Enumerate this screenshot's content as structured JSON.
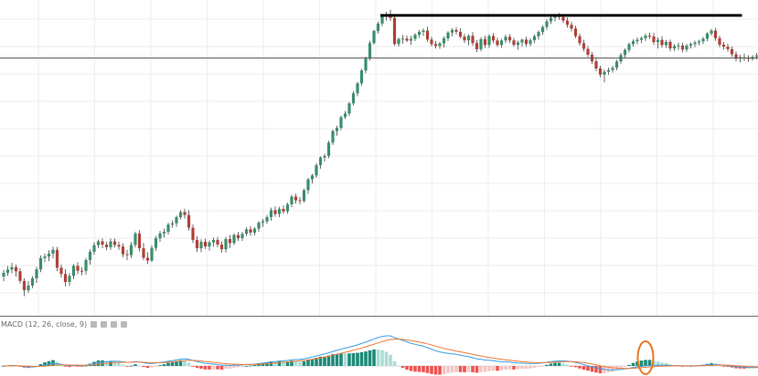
{
  "chart_data": [
    {
      "type": "candlestick",
      "title": "",
      "grid": true,
      "colors": {
        "up": "#3b8f6c",
        "down": "#b0413a",
        "wick": "#6b6b6b"
      },
      "annotations": {
        "resistance_line": {
          "value": 100.4,
          "color": "#000000",
          "start_bar": 92,
          "end_bar": 179
        },
        "horizontal_line": {
          "value": 96.4,
          "color": "#555555"
        }
      },
      "ohlc": [
        [
          75.91,
          76.54,
          75.47,
          76.26
        ],
        [
          76.26,
          76.9,
          75.96,
          76.56
        ],
        [
          76.56,
          77.18,
          76.2,
          76.8
        ],
        [
          76.8,
          77.03,
          75.9,
          76.4
        ],
        [
          76.4,
          76.7,
          75.26,
          75.5
        ],
        [
          75.5,
          75.75,
          74.07,
          74.63
        ],
        [
          74.63,
          75.48,
          74.36,
          75.07
        ],
        [
          75.07,
          75.94,
          74.82,
          75.74
        ],
        [
          75.74,
          76.82,
          75.31,
          76.58
        ],
        [
          76.58,
          77.89,
          76.32,
          77.65
        ],
        [
          77.65,
          78.04,
          77.26,
          77.79
        ],
        [
          77.79,
          78.37,
          77.36,
          78.06
        ],
        [
          78.06,
          78.71,
          77.62,
          78.42
        ],
        [
          78.42,
          78.68,
          76.41,
          76.74
        ],
        [
          76.74,
          77.03,
          75.8,
          76.15
        ],
        [
          76.15,
          76.61,
          74.99,
          75.4
        ],
        [
          75.4,
          76.24,
          75.03,
          75.97
        ],
        [
          75.97,
          77.09,
          75.65,
          76.92
        ],
        [
          76.92,
          77.26,
          76.12,
          76.45
        ],
        [
          76.45,
          76.8,
          76.03,
          76.44
        ],
        [
          76.44,
          77.66,
          76.07,
          77.46
        ],
        [
          77.46,
          78.46,
          77.02,
          78.23
        ],
        [
          78.23,
          79.13,
          77.96,
          78.86
        ],
        [
          78.86,
          79.37,
          78.58,
          79.21
        ],
        [
          79.21,
          79.51,
          78.56,
          78.91
        ],
        [
          78.91,
          79.17,
          78.36,
          78.66
        ],
        [
          78.66,
          79.48,
          78.42,
          79.21
        ],
        [
          79.21,
          79.49,
          78.64,
          78.87
        ],
        [
          78.87,
          79.2,
          78.41,
          78.72
        ],
        [
          78.72,
          79.02,
          77.73,
          78.0
        ],
        [
          78.0,
          78.42,
          77.45,
          77.92
        ],
        [
          77.92,
          79.14,
          77.65,
          78.88
        ],
        [
          78.88,
          80.12,
          78.65,
          79.95
        ],
        [
          79.95,
          80.28,
          78.26,
          78.56
        ],
        [
          78.56,
          79.06,
          77.44,
          77.67
        ],
        [
          77.67,
          78.18,
          77.1,
          77.41
        ],
        [
          77.41,
          78.83,
          77.27,
          78.6
        ],
        [
          78.6,
          79.72,
          78.33,
          79.5
        ],
        [
          79.5,
          80.19,
          79.16,
          79.95
        ],
        [
          79.95,
          80.39,
          79.56,
          80.1
        ],
        [
          80.1,
          80.96,
          79.84,
          80.79
        ],
        [
          80.79,
          81.16,
          80.49,
          80.9
        ],
        [
          80.9,
          81.64,
          80.57,
          81.48
        ],
        [
          81.48,
          82.14,
          81.26,
          81.96
        ],
        [
          81.96,
          82.27,
          81.35,
          81.68
        ],
        [
          81.68,
          82.14,
          80.22,
          80.49
        ],
        [
          80.49,
          80.8,
          79.06,
          79.35
        ],
        [
          79.35,
          79.7,
          78.21,
          78.56
        ],
        [
          78.56,
          79.4,
          78.2,
          79.17
        ],
        [
          79.17,
          79.46,
          78.49,
          78.73
        ],
        [
          78.73,
          79.29,
          78.35,
          79.11
        ],
        [
          79.11,
          79.57,
          78.7,
          79.34
        ],
        [
          79.34,
          79.63,
          78.67,
          78.91
        ],
        [
          78.91,
          79.21,
          78.16,
          78.47
        ],
        [
          78.47,
          79.62,
          78.16,
          79.43
        ],
        [
          79.43,
          79.81,
          78.6,
          79.05
        ],
        [
          79.05,
          79.97,
          78.84,
          79.81
        ],
        [
          79.81,
          80.08,
          79.24,
          79.51
        ],
        [
          79.51,
          80.09,
          79.25,
          79.92
        ],
        [
          79.92,
          80.53,
          79.71,
          80.34
        ],
        [
          80.34,
          80.64,
          79.73,
          80.03
        ],
        [
          80.03,
          80.55,
          79.78,
          80.4
        ],
        [
          80.4,
          81.11,
          80.1,
          80.96
        ],
        [
          80.96,
          81.31,
          80.57,
          81.08
        ],
        [
          81.08,
          81.67,
          80.88,
          81.48
        ],
        [
          81.48,
          82.37,
          81.14,
          82.14
        ],
        [
          82.14,
          82.49,
          81.52,
          81.78
        ],
        [
          81.78,
          82.45,
          81.47,
          82.26
        ],
        [
          82.26,
          82.58,
          81.8,
          82.02
        ],
        [
          82.02,
          82.84,
          81.8,
          82.68
        ],
        [
          82.68,
          83.57,
          82.42,
          83.41
        ],
        [
          83.41,
          83.69,
          82.75,
          83.06
        ],
        [
          83.06,
          83.38,
          82.67,
          82.99
        ],
        [
          82.99,
          84.15,
          82.86,
          84.01
        ],
        [
          84.01,
          85.18,
          83.66,
          85.03
        ],
        [
          85.03,
          85.54,
          84.63,
          85.39
        ],
        [
          85.39,
          86.55,
          85.16,
          86.36
        ],
        [
          86.36,
          87.19,
          86.02,
          87.07
        ],
        [
          87.07,
          87.43,
          86.69,
          87.22
        ],
        [
          87.22,
          88.64,
          87.01,
          88.47
        ],
        [
          88.47,
          89.69,
          88.25,
          89.56
        ],
        [
          89.56,
          90.06,
          89.13,
          89.85
        ],
        [
          89.85,
          91.01,
          89.63,
          90.86
        ],
        [
          90.86,
          91.44,
          90.68,
          91.2
        ],
        [
          91.2,
          92.28,
          90.98,
          92.15
        ],
        [
          92.15,
          93.3,
          91.96,
          93.1
        ],
        [
          93.1,
          94.17,
          92.82,
          94.03
        ],
        [
          94.03,
          95.4,
          93.78,
          95.24
        ],
        [
          95.24,
          96.55,
          94.99,
          96.35
        ],
        [
          96.35,
          98.03,
          96.17,
          97.81
        ],
        [
          97.81,
          99.06,
          97.65,
          98.95
        ],
        [
          98.95,
          99.81,
          98.7,
          99.64
        ],
        [
          99.64,
          100.47,
          99.39,
          100.3
        ],
        [
          100.3,
          100.76,
          99.91,
          100.5
        ],
        [
          100.5,
          100.93,
          99.88,
          100.17
        ],
        [
          100.17,
          100.54,
          97.54,
          97.72
        ],
        [
          97.72,
          98.33,
          97.48,
          98.19
        ],
        [
          98.19,
          98.57,
          97.75,
          98.23
        ],
        [
          98.23,
          98.52,
          97.9,
          98.04
        ],
        [
          98.04,
          98.49,
          97.63,
          98.21
        ],
        [
          98.21,
          98.75,
          98.0,
          98.58
        ],
        [
          98.58,
          99.04,
          98.29,
          98.85
        ],
        [
          98.85,
          99.2,
          98.48,
          98.98
        ],
        [
          98.98,
          99.34,
          97.91,
          98.14
        ],
        [
          98.14,
          98.39,
          97.49,
          97.71
        ],
        [
          97.71,
          98.01,
          97.29,
          97.53
        ],
        [
          97.53,
          97.92,
          97.27,
          97.78
        ],
        [
          97.78,
          98.43,
          97.4,
          98.25
        ],
        [
          98.25,
          98.93,
          98.01,
          98.79
        ],
        [
          98.79,
          99.22,
          98.45,
          99.04
        ],
        [
          99.04,
          99.3,
          98.61,
          98.87
        ],
        [
          98.87,
          99.19,
          98.23,
          98.41
        ],
        [
          98.41,
          98.67,
          97.81,
          98.06
        ],
        [
          98.06,
          98.64,
          97.6,
          98.49
        ],
        [
          98.49,
          98.84,
          97.55,
          97.81
        ],
        [
          97.81,
          98.09,
          96.96,
          97.23
        ],
        [
          97.23,
          98.36,
          97.03,
          98.18
        ],
        [
          98.18,
          98.49,
          97.37,
          97.63
        ],
        [
          97.63,
          98.63,
          97.36,
          98.47
        ],
        [
          98.47,
          98.75,
          97.79,
          98.05
        ],
        [
          98.05,
          98.31,
          97.45,
          97.62
        ],
        [
          97.62,
          98.22,
          97.39,
          98.05
        ],
        [
          98.05,
          98.58,
          97.83,
          98.4
        ],
        [
          98.4,
          98.65,
          97.81,
          98.06
        ],
        [
          98.06,
          98.29,
          97.45,
          97.64
        ],
        [
          97.64,
          98.03,
          97.19,
          97.86
        ],
        [
          97.86,
          98.22,
          97.48,
          98.13
        ],
        [
          98.13,
          98.4,
          97.46,
          97.72
        ],
        [
          97.72,
          98.26,
          97.5,
          98.07
        ],
        [
          98.07,
          98.62,
          97.79,
          98.45
        ],
        [
          98.45,
          98.99,
          98.13,
          98.84
        ],
        [
          98.84,
          99.49,
          98.59,
          99.31
        ],
        [
          99.31,
          100.06,
          99.05,
          99.85
        ],
        [
          99.85,
          100.36,
          99.59,
          100.18
        ],
        [
          100.18,
          100.52,
          99.86,
          100.34
        ],
        [
          100.34,
          100.62,
          100.01,
          100.25
        ],
        [
          100.25,
          100.49,
          99.69,
          99.92
        ],
        [
          99.92,
          100.21,
          99.26,
          99.52
        ],
        [
          99.52,
          99.81,
          98.89,
          99.17
        ],
        [
          99.17,
          99.43,
          98.26,
          98.46
        ],
        [
          98.46,
          98.69,
          97.57,
          97.8
        ],
        [
          97.8,
          98.11,
          97.02,
          97.27
        ],
        [
          97.27,
          97.55,
          96.48,
          96.71
        ],
        [
          96.71,
          96.97,
          95.86,
          96.1
        ],
        [
          96.1,
          96.38,
          95.17,
          95.42
        ],
        [
          95.42,
          95.69,
          94.58,
          94.85
        ],
        [
          94.85,
          95.33,
          94.12,
          95.12
        ],
        [
          95.12,
          95.51,
          94.82,
          95.28
        ],
        [
          95.28,
          95.69,
          95.03,
          95.49
        ],
        [
          95.49,
          96.24,
          95.27,
          96.08
        ],
        [
          96.08,
          96.88,
          95.88,
          96.69
        ],
        [
          96.69,
          97.3,
          96.39,
          97.16
        ],
        [
          97.16,
          97.87,
          96.93,
          97.71
        ],
        [
          97.71,
          98.16,
          97.47,
          97.98
        ],
        [
          97.98,
          98.34,
          97.69,
          98.12
        ],
        [
          98.12,
          98.44,
          97.8,
          98.27
        ],
        [
          98.27,
          98.7,
          98.01,
          98.51
        ],
        [
          98.51,
          98.78,
          98.19,
          98.43
        ],
        [
          98.43,
          98.76,
          97.62,
          97.9
        ],
        [
          97.9,
          98.34,
          97.3,
          98.11
        ],
        [
          98.11,
          98.45,
          97.39,
          97.62
        ],
        [
          97.62,
          98.1,
          97.37,
          97.92
        ],
        [
          97.92,
          98.15,
          97.03,
          97.3
        ],
        [
          97.3,
          97.72,
          97.06,
          97.53
        ],
        [
          97.53,
          97.86,
          97.16,
          97.59
        ],
        [
          97.59,
          97.85,
          96.96,
          97.2
        ],
        [
          97.2,
          97.73,
          96.99,
          97.56
        ],
        [
          97.56,
          97.87,
          97.3,
          97.71
        ],
        [
          97.71,
          98.04,
          97.42,
          97.86
        ],
        [
          97.86,
          98.13,
          97.6,
          97.97
        ],
        [
          97.97,
          98.39,
          97.72,
          98.22
        ],
        [
          98.22,
          98.83,
          97.98,
          98.71
        ],
        [
          98.71,
          99.14,
          98.51,
          98.98
        ],
        [
          98.98,
          99.25,
          98.02,
          98.27
        ],
        [
          98.27,
          98.5,
          97.41,
          97.66
        ],
        [
          97.66,
          97.91,
          97.18,
          97.47
        ],
        [
          97.47,
          97.74,
          97.0,
          97.24
        ],
        [
          97.24,
          97.5,
          96.52,
          96.76
        ],
        [
          96.76,
          97.02,
          96.09,
          96.35
        ],
        [
          96.35,
          96.7,
          96.0,
          96.48
        ],
        [
          96.48,
          96.82,
          96.11,
          96.41
        ],
        [
          96.41,
          96.67,
          96.04,
          96.32
        ],
        [
          96.32,
          96.68,
          96.15,
          96.51
        ],
        [
          96.51,
          96.87,
          96.28,
          96.64
        ],
        [
          96.64,
          96.9,
          96.31,
          96.49
        ],
        [
          96.49,
          96.83,
          96.14,
          96.58
        ],
        [
          96.58,
          96.94,
          96.29,
          96.7
        ],
        [
          96.7,
          97.22,
          96.52,
          97.06
        ],
        [
          97.06,
          97.45,
          96.83,
          97.3
        ],
        [
          97.3,
          97.63,
          97.05,
          97.41
        ],
        [
          97.41,
          97.76,
          97.19,
          97.58
        ],
        [
          97.58,
          97.86,
          97.33,
          97.64
        ],
        [
          97.64,
          97.96,
          97.38,
          97.75
        ],
        [
          97.75,
          98.06,
          97.5,
          97.9
        ],
        [
          97.9,
          98.22,
          97.66,
          98.03
        ]
      ]
    },
    {
      "type": "macd",
      "legend": {
        "label": "MACD (12, 26, close, 9)",
        "buttons": [
          "eye",
          "settings",
          "close",
          "more"
        ]
      },
      "colors": {
        "macd_line": "#3d9fe0",
        "signal_line": "#f07a3a",
        "hist_up_strong": "#1f8a78",
        "hist_up_weak": "#a9ddd6",
        "hist_down_strong": "#ef5350",
        "hist_down_weak": "#f5c4c3"
      },
      "highlight": {
        "shape": "ellipse",
        "color": "#e87722",
        "bar_index": 156
      }
    }
  ]
}
